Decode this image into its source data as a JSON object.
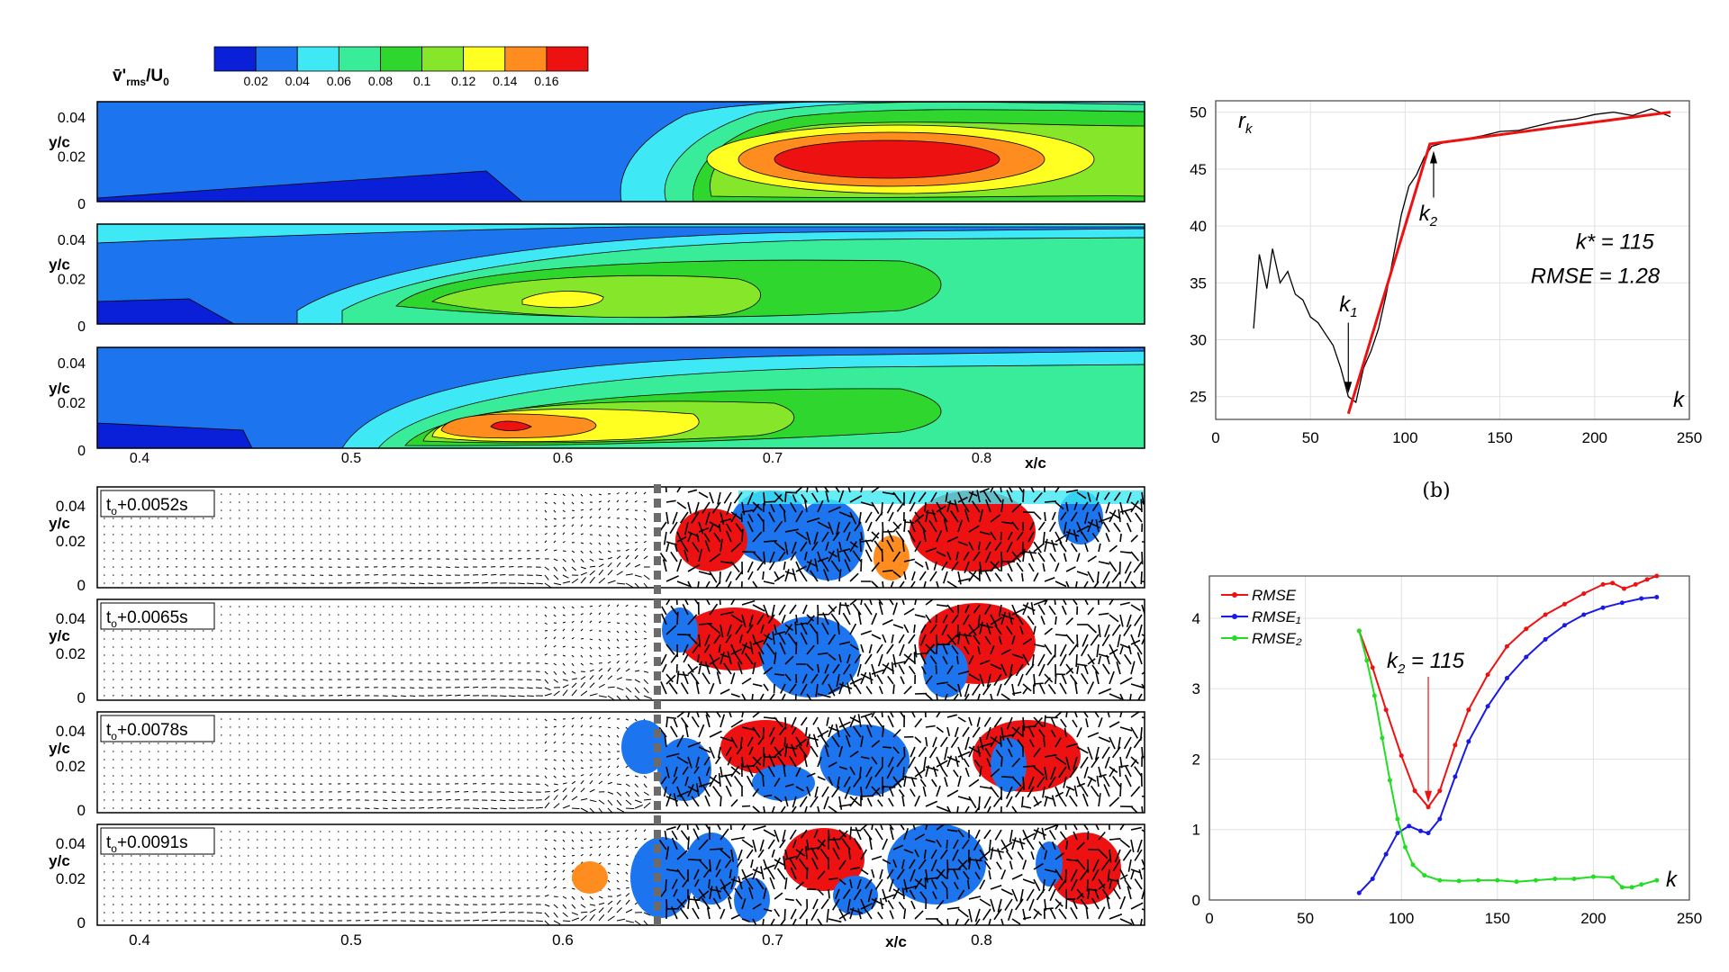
{
  "figure": {
    "colorbar": {
      "label_main": "v̄'",
      "label_sub": "rms",
      "label_tail": "/U",
      "label_tail_sub": "0",
      "ticks": [
        "0.02",
        "0.04",
        "0.06",
        "0.08",
        "0.1",
        "0.12",
        "0.14",
        "0.16"
      ],
      "colors": [
        "#0a1fd8",
        "#1c74ee",
        "#3ee8f4",
        "#39ec9a",
        "#2ed62e",
        "#86e72a",
        "#ffff22",
        "#ff8c1e",
        "#ee1111"
      ]
    },
    "contour_panels": {
      "ylabel": "y/c",
      "yticks": [
        "0.04",
        "0.02",
        "0"
      ],
      "xticks": [
        "0.4",
        "0.5",
        "0.6",
        "0.7",
        "0.8"
      ],
      "xlabel": "x/c"
    },
    "vector_panels": {
      "ylabel": "y/c",
      "yticks": [
        "0.04",
        "0.02",
        "0"
      ],
      "xticks": [
        "0.4",
        "0.5",
        "0.6",
        "0.7",
        "0.8"
      ],
      "xlabel": "x/c",
      "time_labels": [
        {
          "prefix": "t",
          "sub": "o",
          "suffix": "+0.0052s"
        },
        {
          "prefix": "t",
          "sub": "o",
          "suffix": "+0.0065s"
        },
        {
          "prefix": "t",
          "sub": "o",
          "suffix": "+0.0078s"
        },
        {
          "prefix": "t",
          "sub": "o",
          "suffix": "+0.0091s"
        }
      ]
    },
    "panel_b_label": "(b)"
  },
  "chart_data": [
    {
      "type": "line",
      "title": "",
      "ylabel": "r_k",
      "xlabel": "k",
      "xlim": [
        0,
        250
      ],
      "ylim": [
        23,
        51
      ],
      "xticks": [
        "0",
        "50",
        "100",
        "150",
        "200",
        "250"
      ],
      "yticks": [
        "25",
        "30",
        "35",
        "40",
        "45",
        "50"
      ],
      "grid": true,
      "series": [
        {
          "color": "#000000",
          "x": [
            20,
            23,
            27,
            30,
            34,
            38,
            42,
            46,
            50,
            54,
            58,
            62,
            66,
            70,
            74,
            78,
            82,
            86,
            90,
            94,
            98,
            102,
            106,
            110,
            114,
            120,
            130,
            140,
            150,
            160,
            170,
            180,
            190,
            200,
            210,
            220,
            230,
            240
          ],
          "values": [
            31.0,
            37.5,
            34.5,
            38.0,
            35.0,
            36.0,
            34.0,
            33.5,
            32.0,
            31.5,
            30.5,
            29.5,
            27.5,
            25.0,
            24.5,
            27.5,
            29.0,
            31.0,
            34.0,
            37.5,
            41.0,
            43.5,
            44.5,
            46.0,
            47.0,
            47.3,
            47.6,
            47.9,
            48.3,
            48.4,
            48.8,
            49.2,
            49.4,
            49.8,
            50.0,
            49.7,
            50.3,
            49.6
          ]
        },
        {
          "color": "#ee1111",
          "x": [
            70,
            113,
            240
          ],
          "values": [
            23.5,
            47.2,
            50.0
          ]
        }
      ],
      "annotations": [
        {
          "text": "k",
          "sub": "1",
          "x": 70,
          "y": 32.5
        },
        {
          "text": "k",
          "sub": "2",
          "x": 113,
          "y": 40.5
        },
        {
          "text": "k* = 115",
          "x": 190,
          "y": 38.0
        },
        {
          "text": "RMSE = 1.28",
          "x": 190,
          "y": 35.0
        }
      ]
    },
    {
      "type": "line",
      "title": "",
      "ylabel": "",
      "xlabel": "k",
      "xlim": [
        0,
        250
      ],
      "ylim": [
        0,
        4.6
      ],
      "xticks": [
        "0",
        "50",
        "100",
        "150",
        "200",
        "250"
      ],
      "yticks": [
        "0",
        "1",
        "2",
        "3",
        "4"
      ],
      "grid": true,
      "legend": "top-left",
      "series": [
        {
          "name": "RMSE",
          "color": "#ee1111",
          "x": [
            78,
            85,
            92,
            100,
            107,
            114,
            120,
            128,
            135,
            145,
            155,
            165,
            175,
            185,
            195,
            205,
            210,
            216,
            222,
            228,
            233
          ],
          "values": [
            3.82,
            3.3,
            2.7,
            2.05,
            1.55,
            1.32,
            1.55,
            2.2,
            2.7,
            3.2,
            3.6,
            3.85,
            4.05,
            4.2,
            4.35,
            4.48,
            4.5,
            4.42,
            4.48,
            4.55,
            4.6
          ]
        },
        {
          "name": "RMSE₁",
          "color": "#1a1ae6",
          "x": [
            78,
            85,
            92,
            98,
            104,
            110,
            114,
            120,
            128,
            135,
            145,
            155,
            165,
            175,
            185,
            195,
            205,
            215,
            225,
            233
          ],
          "values": [
            0.1,
            0.3,
            0.65,
            0.95,
            1.05,
            0.98,
            0.95,
            1.15,
            1.75,
            2.25,
            2.75,
            3.15,
            3.45,
            3.7,
            3.9,
            4.05,
            4.15,
            4.22,
            4.28,
            4.3
          ]
        },
        {
          "name": "RMSE₂",
          "color": "#22dd22",
          "x": [
            78,
            82,
            86,
            90,
            94,
            98,
            102,
            106,
            112,
            120,
            130,
            140,
            150,
            160,
            170,
            180,
            190,
            200,
            210,
            215,
            220,
            225,
            233
          ],
          "values": [
            3.82,
            3.4,
            2.9,
            2.3,
            1.7,
            1.15,
            0.75,
            0.5,
            0.35,
            0.28,
            0.27,
            0.28,
            0.28,
            0.26,
            0.28,
            0.3,
            0.3,
            0.33,
            0.32,
            0.18,
            0.18,
            0.22,
            0.28
          ]
        }
      ],
      "annotations": [
        {
          "text": "k",
          "sub": "2",
          "tail": " = 115",
          "x": 150,
          "y": 3.35
        }
      ]
    }
  ]
}
